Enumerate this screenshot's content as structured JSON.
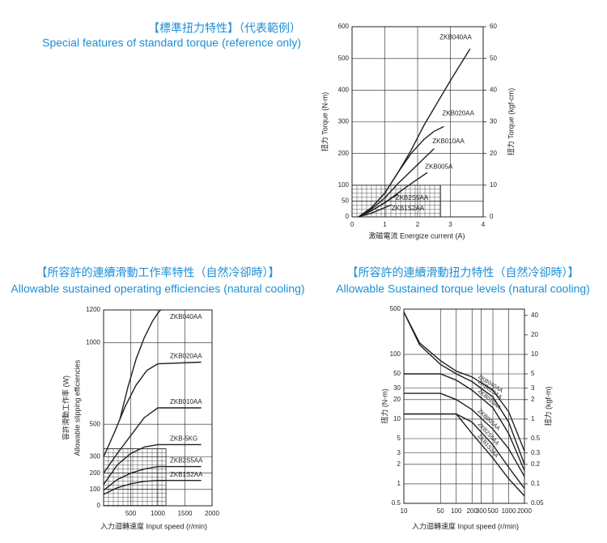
{
  "chart_data": [
    {
      "type": "line",
      "title": "【標準扭力特性】（代表範例）",
      "subtitle": "Special features of standard torque  (reference only)",
      "xlabel": "激磁電流 Energize current (A)",
      "ylabel": "扭力 Torque (N-m)",
      "y2label": "扭力 Torque (kgf-cm)",
      "xlim": [
        0,
        4
      ],
      "xticks": [
        0,
        1,
        2,
        3,
        4
      ],
      "ylim": [
        0,
        600
      ],
      "yticks": [
        0,
        50,
        100,
        200,
        300,
        400,
        500,
        600
      ],
      "y2lim": [
        0,
        60
      ],
      "y2ticks": [
        0,
        10,
        20,
        30,
        40,
        50,
        60
      ],
      "grid": true,
      "hatch": {
        "xlim": [
          0,
          2.7
        ],
        "ylim": [
          0,
          100
        ]
      },
      "series": [
        {
          "name": "ZKB040AA",
          "color": "#231f20",
          "x": [
            0.2,
            0.6,
            1.0,
            1.4,
            1.8,
            2.2,
            2.6,
            3.0,
            3.3,
            3.6
          ],
          "values": [
            0,
            30,
            75,
            140,
            210,
            290,
            360,
            430,
            480,
            530
          ]
        },
        {
          "name": "ZKB020AA",
          "color": "#231f20",
          "x": [
            0.2,
            0.6,
            1.0,
            1.4,
            1.8,
            2.2,
            2.5,
            2.8
          ],
          "values": [
            0,
            30,
            75,
            140,
            200,
            245,
            270,
            285
          ]
        },
        {
          "name": "ZKB010AA",
          "color": "#231f20",
          "x": [
            0.2,
            0.6,
            1.0,
            1.4,
            1.8,
            2.2,
            2.5
          ],
          "values": [
            0,
            25,
            60,
            105,
            145,
            185,
            215
          ]
        },
        {
          "name": "ZKB005A",
          "color": "#231f20",
          "x": [
            0.2,
            0.6,
            1.0,
            1.4,
            1.8,
            2.3
          ],
          "values": [
            0,
            20,
            45,
            75,
            105,
            140
          ]
        },
        {
          "name": "ZKB2S5AA",
          "color": "#231f20",
          "x": [
            0.2,
            0.6,
            1.0,
            1.4
          ],
          "values": [
            0,
            20,
            45,
            72
          ]
        },
        {
          "name": "ZKB1S2AA",
          "color": "#231f20",
          "x": [
            0.2,
            0.6,
            0.9,
            1.2
          ],
          "values": [
            0,
            12,
            25,
            38
          ]
        }
      ]
    },
    {
      "type": "line",
      "title": "【所容許的連續滑動工作率特性（自然冷卻時）】",
      "subtitle": "Allowable sustained operating efficiencies (natural cooling)",
      "xlabel": "入力迴轉速度  Input speed (r/min)",
      "ylabel": "容許滑動工作率 (W)",
      "ylabel_en": "Allowable slipping efficiencies",
      "xlim": [
        0,
        2000
      ],
      "xticks": [
        500,
        1000,
        1500,
        2000
      ],
      "ylim": [
        0,
        1200
      ],
      "yticks": [
        0,
        100,
        200,
        300,
        500,
        1000,
        1200
      ],
      "grid": true,
      "hatch": {
        "xlim": [
          0,
          1150
        ],
        "ylim": [
          0,
          350
        ]
      },
      "series": [
        {
          "name": "ZKB040AA",
          "color": "#231f20",
          "x": [
            300,
            450,
            600,
            750,
            900,
            1000,
            1050
          ],
          "values": [
            530,
            730,
            900,
            1030,
            1130,
            1180,
            1200
          ]
        },
        {
          "name": "ZKB020AA",
          "color": "#231f20",
          "x": [
            0,
            200,
            400,
            600,
            800,
            1000,
            1800
          ],
          "values": [
            300,
            450,
            610,
            740,
            830,
            870,
            880
          ]
        },
        {
          "name": "ZKB010AA",
          "color": "#231f20",
          "x": [
            0,
            250,
            500,
            750,
            1000,
            1800
          ],
          "values": [
            200,
            320,
            430,
            540,
            600,
            600
          ]
        },
        {
          "name": "ZKB-5KG",
          "color": "#231f20",
          "x": [
            0,
            250,
            500,
            750,
            1000,
            1800
          ],
          "values": [
            130,
            250,
            320,
            360,
            375,
            375
          ]
        },
        {
          "name": "ZKB2S5AA",
          "color": "#231f20",
          "x": [
            0,
            250,
            500,
            750,
            1000,
            1800
          ],
          "values": [
            95,
            160,
            200,
            225,
            240,
            240
          ]
        },
        {
          "name": "ZKB1S2AA",
          "color": "#231f20",
          "x": [
            0,
            250,
            500,
            750,
            1000,
            1800
          ],
          "values": [
            70,
            110,
            135,
            150,
            155,
            155
          ]
        }
      ]
    },
    {
      "type": "line",
      "title": "【所容許的連續滑動扭力特性（自然冷卻時）】",
      "subtitle": "Allowable Sustained torque levels (natural cooling)",
      "xlabel": "入力迴轉速度  Input speed (r/min)",
      "ylabel": "扭力 (N-m)",
      "y2label": "扭力 (kgf-m)",
      "xscale": "log",
      "yscale": "log",
      "xlim": [
        10,
        2000
      ],
      "xticks": [
        10,
        50,
        100,
        200,
        300,
        500,
        1000,
        2000
      ],
      "ylim": [
        0.5,
        500
      ],
      "yticks": [
        0.5,
        1,
        2,
        3,
        5,
        10,
        20,
        30,
        50,
        100,
        500
      ],
      "y2lim": [
        0.05,
        50
      ],
      "y2ticks": [
        0.05,
        0.1,
        0.2,
        0.3,
        0.5,
        1,
        2,
        3,
        5,
        10,
        20,
        40
      ],
      "grid": true,
      "series": [
        {
          "name": "ZKB040AA",
          "color": "#231f20",
          "x": [
            10,
            20,
            50,
            100,
            200,
            500,
            1000,
            2000
          ],
          "values": [
            450,
            150,
            80,
            55,
            45,
            28,
            13,
            3.2
          ]
        },
        {
          "name": "ZKB020AA",
          "color": "#231f20",
          "x": [
            10,
            20,
            50,
            100,
            200,
            500,
            1000,
            2000
          ],
          "values": [
            450,
            140,
            70,
            50,
            38,
            22,
            9,
            2
          ]
        },
        {
          "name": "ZKB010AA",
          "color": "#231f20",
          "x": [
            10,
            50,
            100,
            200,
            500,
            1000,
            2000
          ],
          "values": [
            50,
            50,
            40,
            28,
            15,
            6,
            1.6
          ]
        },
        {
          "name": "ZKB005AA",
          "color": "#231f20",
          "x": [
            10,
            50,
            100,
            200,
            500,
            1000,
            2000
          ],
          "values": [
            25,
            25,
            20,
            14,
            7,
            3.5,
            1.3
          ]
        },
        {
          "name": "ZKB2S5AA",
          "color": "#231f20",
          "x": [
            10,
            100,
            200,
            500,
            1000,
            2000
          ],
          "values": [
            12,
            12,
            9,
            4,
            1.8,
            0.85
          ]
        },
        {
          "name": "ZKB1S2AA",
          "color": "#231f20",
          "x": [
            10,
            100,
            200,
            500,
            1000,
            2000
          ],
          "values": [
            12,
            12,
            6,
            2.5,
            1.2,
            0.65
          ]
        }
      ]
    }
  ]
}
